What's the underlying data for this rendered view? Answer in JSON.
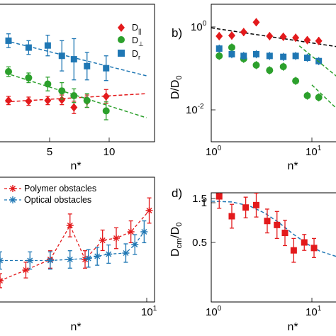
{
  "chart_data": [
    {
      "panel": "a",
      "type": "scatter",
      "xlabel": "n*",
      "ylabel": "",
      "xlim": [
        0,
        14
      ],
      "ylim": [
        0,
        2
      ],
      "x_ticks": [
        "5",
        "10"
      ],
      "legend": {
        "placement": "top-right",
        "entries": [
          "D∥",
          "D⊥",
          "Dr"
        ]
      },
      "series": [
        {
          "name": "D∥",
          "color": "#e31a1c",
          "marker": "diamond",
          "points": [
            [
              0.3,
              0.6,
              0.06
            ],
            [
              2.3,
              0.59,
              0.06
            ],
            [
              4.2,
              0.6,
              0.06
            ],
            [
              5.6,
              0.61,
              0.07
            ],
            [
              6.8,
              0.5,
              0.09
            ],
            [
              8.1,
              0.59,
              0.09
            ],
            [
              10.0,
              0.66,
              0.1
            ]
          ],
          "fit": [
            [
              0,
              0.58
            ],
            [
              14,
              0.7
            ]
          ]
        },
        {
          "name": "D⊥",
          "color": "#2ca02c",
          "marker": "circle",
          "points": [
            [
              0.3,
              1.02,
              0.07
            ],
            [
              2.3,
              0.93,
              0.07
            ],
            [
              4.2,
              0.84,
              0.1
            ],
            [
              5.6,
              0.74,
              0.12
            ],
            [
              6.8,
              0.67,
              0.1
            ],
            [
              8.1,
              0.6,
              0.1
            ],
            [
              10.0,
              0.45,
              0.13
            ]
          ],
          "fit": [
            [
              0,
              1.0
            ],
            [
              14,
              0.35
            ]
          ]
        },
        {
          "name": "Dr",
          "color": "#1f77b4",
          "marker": "square",
          "points": [
            [
              0.3,
              1.47,
              0.1
            ],
            [
              2.3,
              1.37,
              0.1
            ],
            [
              4.2,
              1.4,
              0.15
            ],
            [
              5.6,
              1.25,
              0.22
            ],
            [
              6.8,
              1.2,
              0.3
            ],
            [
              8.1,
              1.1,
              0.2
            ],
            [
              10.0,
              1.07,
              0.18
            ]
          ],
          "fit": [
            [
              0,
              1.47
            ],
            [
              14,
              0.96
            ]
          ]
        }
      ]
    },
    {
      "panel": "b",
      "type": "scatter",
      "xlabel": "n*",
      "ylabel": "D/D0",
      "xscale": "log",
      "yscale": "log",
      "xlim": [
        1,
        20
      ],
      "ylim": [
        0.004,
        2
      ],
      "x_ticks": [
        "10^0",
        "10^1"
      ],
      "y_ticks": [
        "10^0",
        "10^-2"
      ],
      "series": [
        {
          "name": "D∥",
          "color": "#e31a1c",
          "marker": "diamond",
          "points": [
            [
              1.2,
              0.6
            ],
            [
              1.6,
              0.62
            ],
            [
              2.1,
              0.75
            ],
            [
              2.8,
              1.3
            ],
            [
              3.8,
              0.6
            ],
            [
              5.2,
              0.58
            ],
            [
              6.9,
              0.55
            ],
            [
              9.0,
              0.48
            ],
            [
              11.7,
              0.46
            ]
          ],
          "fit": [
            [
              1.0,
              0.95
            ],
            [
              20,
              0.32
            ]
          ]
        },
        {
          "name": "D⊥",
          "color": "#2ca02c",
          "marker": "circle",
          "points": [
            [
              1.2,
              0.2
            ],
            [
              1.6,
              0.32
            ],
            [
              2.1,
              0.17
            ],
            [
              2.8,
              0.12
            ],
            [
              3.8,
              0.09
            ],
            [
              5.2,
              0.11
            ],
            [
              6.9,
              0.05
            ],
            [
              9.0,
              0.022
            ],
            [
              11.7,
              0.02
            ]
          ]
        },
        {
          "name": "Dr",
          "color": "#1f77b4",
          "marker": "square",
          "points": [
            [
              1.2,
              0.3
            ],
            [
              1.6,
              0.22
            ],
            [
              2.1,
              0.2
            ],
            [
              2.8,
              0.22
            ],
            [
              3.8,
              0.2
            ],
            [
              5.2,
              0.19
            ],
            [
              6.9,
              0.2
            ],
            [
              9.0,
              0.18
            ],
            [
              11.7,
              0.15
            ]
          ]
        }
      ]
    },
    {
      "panel": "c",
      "type": "scatter",
      "xlabel": "n*",
      "ylabel": "",
      "xscale": "log",
      "xlim": [
        1,
        12
      ],
      "ylim": [
        0,
        1
      ],
      "x_ticks": [
        "10^1"
      ],
      "legend": {
        "placement": "top-left",
        "entries": [
          "Polymer obstacles",
          "Optical obstacles"
        ]
      },
      "series": [
        {
          "name": "Polymer obstacles",
          "color": "#e31a1c",
          "marker": "asterisk",
          "points": [
            [
              1.0,
              0.2
            ],
            [
              1.5,
              0.3
            ],
            [
              2.2,
              0.4
            ],
            [
              3.0,
              0.72
            ],
            [
              3.8,
              0.4
            ],
            [
              5.0,
              0.58
            ],
            [
              6.2,
              0.6
            ],
            [
              7.8,
              0.66
            ],
            [
              10.4,
              0.86
            ]
          ]
        },
        {
          "name": "Optical obstacles",
          "color": "#1f77b4",
          "marker": "asterisk",
          "points": [
            [
              1.0,
              0.39
            ],
            [
              1.6,
              0.39
            ],
            [
              2.2,
              0.39
            ],
            [
              3.0,
              0.4
            ],
            [
              4.0,
              0.41
            ],
            [
              4.6,
              0.43
            ],
            [
              5.5,
              0.45
            ],
            [
              7.2,
              0.46
            ],
            [
              8.3,
              0.54
            ],
            [
              9.6,
              0.66
            ]
          ]
        }
      ]
    },
    {
      "panel": "d",
      "type": "scatter",
      "xlabel": "n*",
      "ylabel": "Dcm/D0",
      "xscale": "log",
      "xlim": [
        1,
        20
      ],
      "ylim": [
        0.2,
        1.5
      ],
      "x_ticks": [
        "10^0",
        "10^1"
      ],
      "y_ticks": [
        "0.5",
        "1",
        "1.5"
      ],
      "series": [
        {
          "name": "Dcm",
          "color": "#e31a1c",
          "marker": "square",
          "points": [
            [
              1.2,
              1.08,
              0.15
            ],
            [
              1.6,
              0.83,
              0.15
            ],
            [
              2.2,
              0.94,
              0.13
            ],
            [
              2.8,
              0.97,
              0.15
            ],
            [
              3.6,
              0.77,
              0.15
            ],
            [
              4.5,
              0.72,
              0.17
            ],
            [
              5.4,
              0.62,
              0.16
            ],
            [
              6.6,
              0.4,
              0.15
            ],
            [
              8.4,
              0.5,
              0.1
            ],
            [
              10.5,
              0.43,
              0.12
            ]
          ],
          "fit": [
            [
              1.0,
              1.02
            ],
            [
              1.6,
              1.01
            ],
            [
              2.4,
              0.96
            ],
            [
              3.4,
              0.87
            ],
            [
              4.7,
              0.75
            ],
            [
              6.6,
              0.6
            ],
            [
              9.0,
              0.48
            ],
            [
              12,
              0.39
            ],
            [
              20,
              0.3
            ]
          ]
        }
      ]
    }
  ],
  "labels": {
    "panel_b": "b)",
    "panel_d": "d)",
    "leg_a1": "D",
    "leg_a1_sub": "||",
    "leg_a2": "D",
    "leg_a2_sub": "⊥",
    "leg_a3": "D",
    "leg_a3_sub": "r",
    "a_x5": "5",
    "a_x10": "10",
    "a_xlabel": "n*",
    "b_ylabel_main": "D/D",
    "b_ylabel_sub": "0",
    "b_y0": "10",
    "b_y0_exp": "0",
    "b_y2": "10",
    "b_y2_exp": "-2",
    "b_x0": "10",
    "b_x0_exp": "0",
    "b_x1": "10",
    "b_x1_exp": "1",
    "b_xlabel": "n*",
    "c_leg1": "Polymer obstacles",
    "c_leg2": "Optical obstacles",
    "c_x1": "10",
    "c_x1_exp": "1",
    "c_xlabel": "n*",
    "d_ylabel_main": "D",
    "d_ylabel_sub1": "cm",
    "d_ylabel_mid": "/D",
    "d_ylabel_sub2": "0",
    "d_y15": "1.5",
    "d_y1": "1",
    "d_y05": "0.5",
    "d_x0": "10",
    "d_x0_exp": "0",
    "d_x1": "10",
    "d_x1_exp": "1",
    "d_xlabel": "n*"
  }
}
